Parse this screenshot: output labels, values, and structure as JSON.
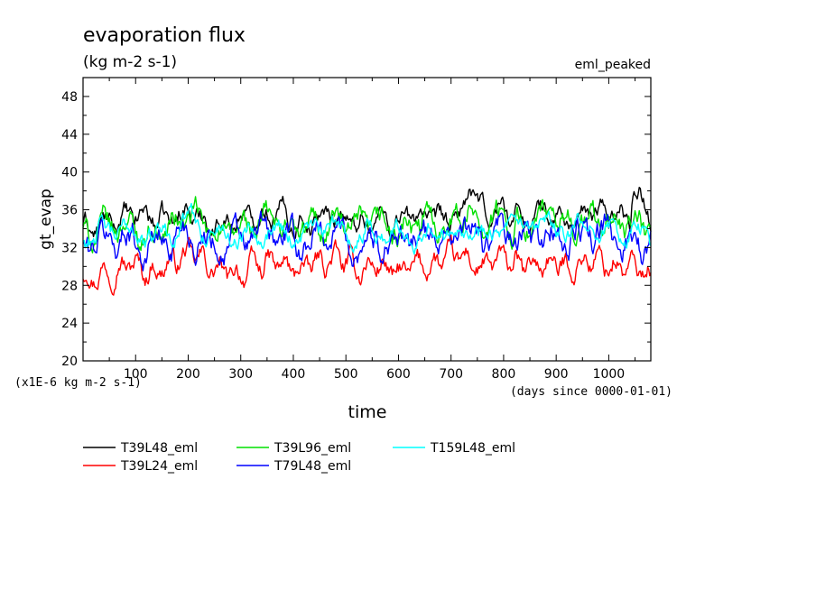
{
  "chart_data": {
    "type": "line",
    "title": "evaporation flux",
    "subtitle": "(kg m-2 s-1)",
    "case_label": "eml_peaked",
    "xlabel": "time",
    "ylabel": "gt_evap",
    "y_unit_note": "(x1E-6 kg m-2 s-1)",
    "x_unit_note": "(days since 0000-01-01)",
    "xlim": [
      0,
      1080
    ],
    "ylim": [
      20,
      50
    ],
    "x_ticks": [
      100,
      200,
      300,
      400,
      500,
      600,
      700,
      800,
      900,
      1000
    ],
    "y_ticks": [
      20,
      24,
      28,
      32,
      36,
      40,
      44,
      48
    ],
    "grid": false,
    "legend_placement": "below",
    "series": [
      {
        "name": "T39L48_eml",
        "color": "#000000",
        "mean": 34.5,
        "amp": 1.3,
        "x": [
          0,
          40,
          80,
          120,
          160,
          200,
          240,
          280,
          320,
          360,
          400,
          440,
          480,
          520,
          560,
          600,
          640,
          680,
          720,
          733,
          760,
          800,
          840,
          880,
          920,
          960,
          1000,
          1040,
          1045,
          1080
        ],
        "y": [
          34.0,
          34.2,
          35.0,
          35.5,
          34.6,
          36.0,
          34.5,
          34.9,
          35.3,
          36.2,
          34.8,
          35.1,
          35.5,
          34.6,
          35.0,
          34.9,
          35.6,
          34.4,
          35.2,
          38.5,
          35.4,
          36.1,
          35.0,
          35.6,
          34.7,
          35.3,
          35.9,
          35.2,
          38.6,
          35.5
        ]
      },
      {
        "name": "T39L24_eml",
        "color": "#ff0000",
        "mean": 29.9,
        "amp": 1.3,
        "x": [
          0,
          40,
          80,
          120,
          160,
          200,
          240,
          280,
          320,
          360,
          400,
          440,
          480,
          520,
          560,
          600,
          640,
          680,
          720,
          760,
          800,
          840,
          880,
          920,
          960,
          1000,
          1040,
          1080
        ],
        "y": [
          29.0,
          29.5,
          30.6,
          29.4,
          30.2,
          31.3,
          30.0,
          28.9,
          29.8,
          30.4,
          29.5,
          30.1,
          30.9,
          29.6,
          30.3,
          29.1,
          30.0,
          30.5,
          31.0,
          29.8,
          30.6,
          29.7,
          30.4,
          29.9,
          30.8,
          30.2,
          29.8,
          29.4
        ]
      },
      {
        "name": "T39L96_eml",
        "color": "#00e000",
        "mean": 33.9,
        "amp": 1.6,
        "x": [
          0,
          40,
          80,
          120,
          160,
          200,
          240,
          280,
          320,
          360,
          400,
          440,
          480,
          520,
          560,
          600,
          640,
          680,
          720,
          760,
          800,
          840,
          880,
          920,
          960,
          1000,
          1040,
          1080
        ],
        "y": [
          33.5,
          33.8,
          34.6,
          33.2,
          34.0,
          35.2,
          33.9,
          33.4,
          34.1,
          35.0,
          33.6,
          34.2,
          34.8,
          33.5,
          34.4,
          33.6,
          34.2,
          34.9,
          35.6,
          35.1,
          34.7,
          34.3,
          35.0,
          34.4,
          34.9,
          34.6,
          34.2,
          33.9
        ]
      },
      {
        "name": "T79L48_eml",
        "color": "#0000ff",
        "mean": 32.8,
        "amp": 1.8,
        "x": [
          0,
          40,
          80,
          120,
          160,
          200,
          240,
          280,
          320,
          360,
          400,
          440,
          480,
          520,
          560,
          600,
          640,
          680,
          720,
          760,
          800,
          840,
          880,
          920,
          960,
          1000,
          1040,
          1080
        ],
        "y": [
          32.4,
          32.6,
          33.4,
          32.1,
          32.9,
          33.8,
          32.6,
          32.2,
          33.0,
          33.5,
          32.4,
          33.0,
          33.6,
          32.3,
          33.1,
          32.5,
          33.0,
          33.4,
          33.9,
          32.8,
          33.2,
          32.6,
          33.3,
          32.8,
          33.4,
          33.0,
          32.7,
          32.5
        ]
      },
      {
        "name": "T159L48_eml",
        "color": "#00ffff",
        "mean": 33.5,
        "amp": 1.2,
        "x": [
          0,
          40,
          80,
          120,
          160,
          200,
          240,
          280,
          320,
          360,
          400,
          440,
          480,
          520,
          560,
          600,
          640,
          680,
          720,
          760,
          800,
          840,
          880,
          920,
          960,
          1000,
          1040,
          1080
        ],
        "y": [
          33.2,
          33.5,
          34.0,
          33.0,
          33.8,
          35.0,
          33.6,
          33.3,
          33.9,
          34.3,
          33.4,
          33.8,
          34.2,
          33.2,
          33.9,
          33.3,
          33.8,
          34.1,
          34.4,
          33.6,
          34.0,
          33.5,
          34.1,
          33.6,
          34.0,
          33.8,
          33.5,
          33.3
        ]
      }
    ],
    "legend": [
      {
        "name": "T39L48_eml",
        "color": "#000000"
      },
      {
        "name": "T39L96_eml",
        "color": "#00e000"
      },
      {
        "name": "T159L48_eml",
        "color": "#00ffff"
      },
      {
        "name": "T39L24_eml",
        "color": "#ff0000"
      },
      {
        "name": "T79L48_eml",
        "color": "#0000ff"
      }
    ]
  }
}
